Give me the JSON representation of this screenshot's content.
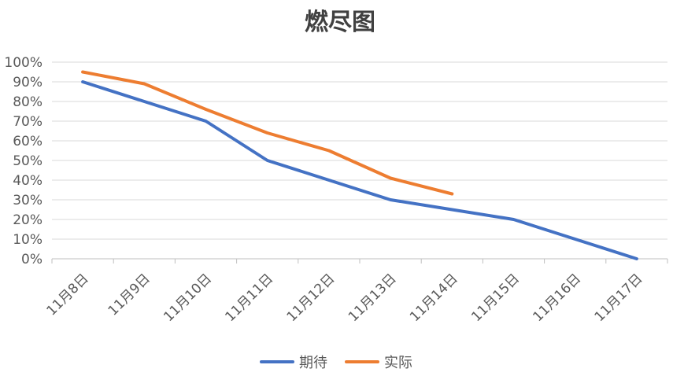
{
  "chart_data": {
    "type": "line",
    "title": "燃尽图",
    "xlabel": "",
    "ylabel": "",
    "categories": [
      "11月8日",
      "11月9日",
      "11月10日",
      "11月11日",
      "11月12日",
      "11月13日",
      "11月14日",
      "11月15日",
      "11月16日",
      "11月17日"
    ],
    "y_ticks": [
      "0%",
      "10%",
      "20%",
      "30%",
      "40%",
      "50%",
      "60%",
      "70%",
      "80%",
      "90%",
      "100%"
    ],
    "ylim": [
      0,
      100
    ],
    "grid": true,
    "legend_position": "bottom",
    "series": [
      {
        "name": "期待",
        "color": "#4472c4",
        "values": [
          90,
          80,
          70,
          50,
          40,
          30,
          25,
          20,
          10,
          0
        ]
      },
      {
        "name": "实际",
        "color": "#ed7d31",
        "values": [
          95,
          89,
          76,
          64,
          55,
          41,
          33,
          null,
          null,
          null
        ]
      }
    ]
  }
}
